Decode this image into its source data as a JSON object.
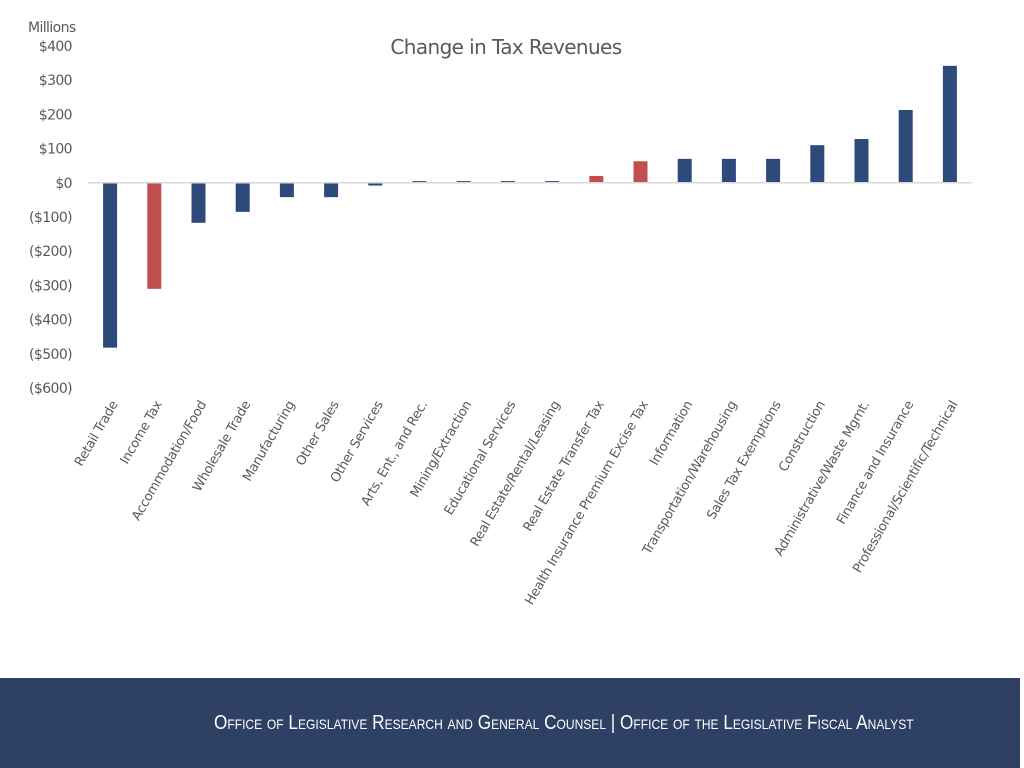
{
  "chart_data": {
    "type": "bar",
    "title": "Change in Tax Revenues",
    "ylabel": "Millions",
    "xlabel": "",
    "ylim": [
      -600,
      400
    ],
    "yticks": [
      400,
      300,
      200,
      100,
      0,
      -100,
      -200,
      -300,
      -400,
      -500,
      -600
    ],
    "ytick_labels": [
      "$400",
      "$300",
      "$200",
      "$100",
      "$0",
      "($100)",
      "($200)",
      "($300)",
      "($400)",
      "($500)",
      "($600)"
    ],
    "grid": false,
    "legend": "none",
    "colors": {
      "industry": "#2e4a7a",
      "policy": "#c0504d",
      "axis": "#d9d9d9",
      "text": "#595959"
    },
    "categories": [
      "Retail Trade",
      "Income Tax",
      "Accommodation/Food",
      "Wholesale Trade",
      "Manufacturing",
      "Other Sales",
      "Other Services",
      "Arts, Ent., and Rec.",
      "Mining/Extraction",
      "Educational Services",
      "Real Estate/Rental/Leasing",
      "Real Estate Transfer Tax",
      "Health Insurance Premium Excise Tax",
      "Information",
      "Transportation/Warehousing",
      "Sales Tax Exemptions",
      "Construction",
      "Administrative/Waste Mgmt.",
      "Finance and Insurance",
      "Professional/Scientific/Technical"
    ],
    "values": [
      -482,
      -310,
      -117,
      -85,
      -42,
      -42,
      -8,
      5,
      5,
      5,
      5,
      20,
      63,
      70,
      70,
      70,
      110,
      128,
      213,
      342
    ],
    "highlight": [
      false,
      true,
      false,
      false,
      false,
      false,
      false,
      false,
      false,
      false,
      false,
      true,
      true,
      false,
      false,
      false,
      false,
      false,
      false,
      false
    ]
  },
  "footer": {
    "text": "Office of Legislative Research and General Counsel | Office of the Legislative Fiscal Analyst"
  }
}
